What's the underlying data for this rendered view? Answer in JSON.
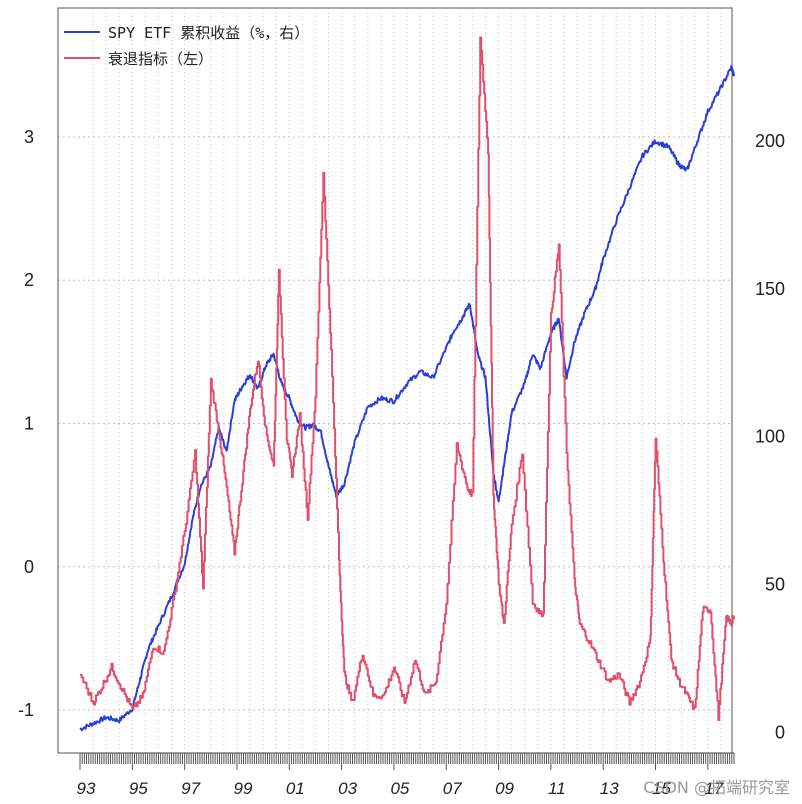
{
  "chart_data": {
    "type": "line",
    "title": "",
    "legend": {
      "placement": "top-left",
      "entries": [
        {
          "label": "SPY ETF 累积收益（%，右）",
          "color": "#2a3fd6"
        },
        {
          "label": "衰退指标（左）",
          "color": "#e0506c"
        }
      ]
    },
    "x_axis": {
      "range": [
        1993.0,
        2018.0
      ],
      "tick_labels": [
        "93",
        "95",
        "97",
        "99",
        "01",
        "03",
        "05",
        "07",
        "09",
        "11",
        "13",
        "15",
        "17"
      ],
      "tick_values": [
        1993,
        1995,
        1997,
        1999,
        2001,
        2003,
        2005,
        2007,
        2009,
        2011,
        2013,
        2015,
        2017
      ]
    },
    "y_left": {
      "range": [
        -1.3,
        3.9
      ],
      "ticks": [
        -1,
        0,
        1,
        2,
        3
      ],
      "tick_labels": [
        "-1",
        "0",
        "1",
        "2",
        "3"
      ]
    },
    "y_right": {
      "range": [
        -7,
        245
      ],
      "ticks": [
        0,
        50,
        100,
        150,
        200
      ],
      "tick_labels": [
        "0",
        "50",
        "100",
        "150",
        "200"
      ]
    },
    "grid": true,
    "series": [
      {
        "name": "SPY ETF 累积收益（%，右）",
        "axis": "right",
        "color": "#2a3fd6",
        "x": [
          1993.0,
          1993.5,
          1994.0,
          1994.5,
          1995.0,
          1995.3,
          1995.6,
          1996.0,
          1996.5,
          1997.0,
          1997.3,
          1997.6,
          1998.0,
          1998.3,
          1998.6,
          1998.9,
          1999.2,
          1999.5,
          1999.8,
          2000.1,
          2000.4,
          2000.7,
          2001.0,
          2001.3,
          2001.6,
          2001.9,
          2002.2,
          2002.5,
          2002.8,
          2003.1,
          2003.5,
          2004.0,
          2004.5,
          2005.0,
          2005.5,
          2006.0,
          2006.5,
          2007.0,
          2007.3,
          2007.6,
          2007.9,
          2008.2,
          2008.5,
          2008.8,
          2009.0,
          2009.2,
          2009.5,
          2010.0,
          2010.3,
          2010.6,
          2011.0,
          2011.3,
          2011.6,
          2011.9,
          2012.3,
          2012.7,
          2013.0,
          2013.5,
          2014.0,
          2014.5,
          2015.0,
          2015.5,
          2015.9,
          2016.2,
          2016.6,
          2017.0,
          2017.5,
          2017.9,
          2018.0
        ],
        "y": [
          1,
          3,
          5,
          4,
          8,
          18,
          28,
          36,
          46,
          57,
          72,
          83,
          90,
          103,
          95,
          112,
          117,
          121,
          116,
          124,
          128,
          118,
          113,
          106,
          103,
          104,
          102,
          90,
          80,
          84,
          98,
          110,
          113,
          112,
          118,
          122,
          120,
          130,
          136,
          140,
          145,
          128,
          120,
          88,
          78,
          90,
          108,
          118,
          128,
          123,
          135,
          140,
          120,
          132,
          142,
          150,
          160,
          173,
          184,
          195,
          200,
          198,
          192,
          190,
          200,
          210,
          218,
          225,
          222
        ]
      },
      {
        "name": "衰退指标（左）",
        "axis": "left",
        "color": "#e0506c",
        "x": [
          1993.0,
          1993.5,
          1993.8,
          1994.2,
          1994.6,
          1995.0,
          1995.4,
          1995.8,
          1996.2,
          1996.6,
          1997.0,
          1997.4,
          1997.7,
          1998.0,
          1998.3,
          1998.6,
          1998.9,
          1999.2,
          1999.5,
          1999.8,
          2000.1,
          2000.4,
          2000.6,
          2000.9,
          2001.1,
          2001.4,
          2001.7,
          2002.0,
          2002.3,
          2002.6,
          2002.9,
          2003.1,
          2003.4,
          2003.8,
          2004.2,
          2004.6,
          2005.0,
          2005.4,
          2005.8,
          2006.2,
          2006.6,
          2007.0,
          2007.4,
          2007.8,
          2008.0,
          2008.3,
          2008.6,
          2008.8,
          2009.0,
          2009.2,
          2009.5,
          2009.9,
          2010.3,
          2010.7,
          2011.0,
          2011.3,
          2011.6,
          2011.9,
          2012.1,
          2012.4,
          2012.8,
          2013.2,
          2013.6,
          2014.0,
          2014.4,
          2014.8,
          2015.0,
          2015.3,
          2015.6,
          2015.9,
          2016.2,
          2016.5,
          2016.8,
          2017.1,
          2017.4,
          2017.7,
          2017.9,
          2018.0
        ],
        "y": [
          -0.75,
          -0.95,
          -0.85,
          -0.7,
          -0.85,
          -1.0,
          -0.9,
          -0.55,
          -0.6,
          -0.2,
          0.25,
          0.8,
          -0.15,
          1.3,
          0.95,
          0.55,
          0.1,
          0.6,
          1.1,
          1.45,
          0.95,
          0.7,
          2.05,
          0.9,
          0.65,
          1.05,
          0.35,
          1.2,
          2.75,
          1.5,
          0.05,
          -0.75,
          -0.95,
          -0.6,
          -0.9,
          -0.9,
          -0.7,
          -0.95,
          -0.65,
          -0.9,
          -0.8,
          -0.25,
          0.85,
          0.55,
          0.5,
          3.7,
          2.9,
          0.5,
          -0.1,
          -0.4,
          0.3,
          0.8,
          -0.25,
          -0.35,
          1.75,
          2.25,
          0.8,
          -0.1,
          -0.4,
          -0.5,
          -0.65,
          -0.8,
          -0.75,
          -0.95,
          -0.8,
          -0.5,
          0.9,
          0.05,
          -0.65,
          -0.8,
          -0.9,
          -1.0,
          -0.3,
          -0.3,
          -1.05,
          -0.35,
          -0.4,
          -0.35
        ]
      }
    ]
  },
  "watermark": "CSDN @拓端研究室"
}
